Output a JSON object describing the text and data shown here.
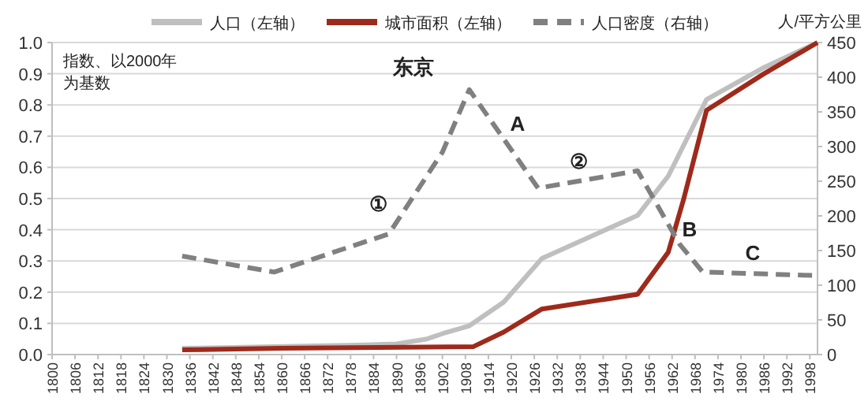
{
  "chart_data": {
    "type": "line",
    "title": "东京",
    "y2label": "人/平方公里",
    "annotations": [
      "指数、以2000年为基数",
      "①",
      "A",
      "②",
      "B",
      "C"
    ],
    "xlim": [
      1800,
      2000
    ],
    "xticks": [
      1800,
      1806,
      1812,
      1818,
      1824,
      1830,
      1836,
      1842,
      1848,
      1854,
      1860,
      1866,
      1872,
      1878,
      1884,
      1890,
      1896,
      1902,
      1908,
      1914,
      1920,
      1926,
      1932,
      1938,
      1944,
      1950,
      1956,
      1962,
      1968,
      1974,
      1980,
      1986,
      1992,
      1998
    ],
    "ylim": [
      0,
      1
    ],
    "yticks": [
      {
        "value": 0,
        "label": "0.0"
      },
      {
        "value": 0.1,
        "label": "0.1"
      },
      {
        "value": 0.2,
        "label": "0.2"
      },
      {
        "value": 0.3,
        "label": "0.3"
      },
      {
        "value": 0.4,
        "label": "0.4"
      },
      {
        "value": 0.5,
        "label": "0.5"
      },
      {
        "value": 0.6,
        "label": "0.6"
      },
      {
        "value": 0.7,
        "label": "0.7"
      },
      {
        "value": 0.8,
        "label": "0.8"
      },
      {
        "value": 0.9,
        "label": "0.9"
      },
      {
        "value": 1,
        "label": "1.0"
      }
    ],
    "y2lim": [
      0,
      450
    ],
    "y2ticks": [
      0,
      50,
      100,
      150,
      200,
      250,
      300,
      350,
      400,
      450
    ],
    "grid": "y",
    "legend": "top",
    "series": [
      {
        "name": "人口（左轴）",
        "color": "#bfbfbf",
        "line_style": "solid",
        "x": [
          1834,
          1880,
          1890,
          1898,
          1902,
          1909,
          1918,
          1928,
          1953,
          1961,
          1971,
          1986,
          2000
        ],
        "values": [
          0.02,
          0.03,
          0.034,
          0.05,
          0.067,
          0.092,
          0.168,
          0.308,
          0.446,
          0.572,
          0.817,
          0.92,
          1.0
        ]
      },
      {
        "name": "城市面积（左轴）",
        "color": "#9e2a1b",
        "line_style": "solid",
        "x": [
          1834,
          1860,
          1910,
          1918,
          1928,
          1953,
          1961,
          1965,
          1971,
          1986,
          2000
        ],
        "values": [
          0.015,
          0.02,
          0.025,
          0.072,
          0.146,
          0.193,
          0.328,
          0.497,
          0.783,
          0.9,
          1.0
        ]
      },
      {
        "name": "人口密度（右轴）",
        "color": "#808080",
        "line_style": "dashed",
        "axis": "y2",
        "x": [
          1834,
          1858,
          1888,
          1902,
          1909,
          1927,
          1953,
          1964,
          1970,
          1999
        ],
        "values": [
          142,
          119,
          174,
          292,
          382,
          240,
          265,
          159,
          119,
          114
        ]
      }
    ]
  }
}
